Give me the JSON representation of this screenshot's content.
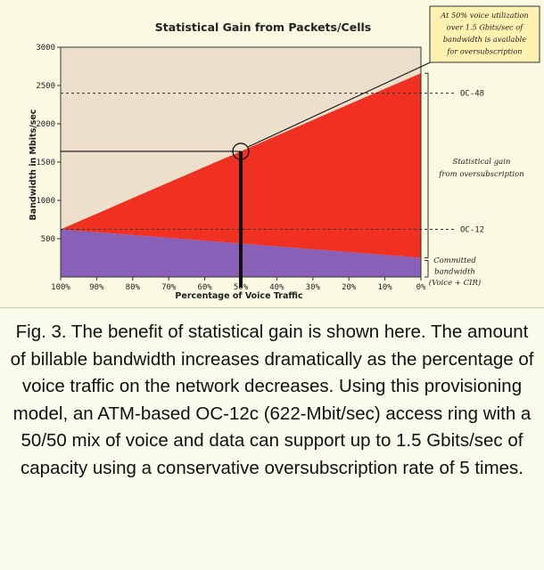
{
  "chart_data": {
    "type": "area",
    "title": "Statistical Gain from Packets/Cells",
    "xlabel": "Percentage of Voice Traffic",
    "ylabel": "Bandwidth in Mbits/sec",
    "x_ticks": [
      "100%",
      "90%",
      "80%",
      "70%",
      "60%",
      "50%",
      "40%",
      "30%",
      "20%",
      "10%",
      "0%"
    ],
    "x_values": [
      100,
      90,
      80,
      70,
      60,
      50,
      40,
      30,
      20,
      10,
      0
    ],
    "ylim": [
      0,
      3000
    ],
    "y_ticks": [
      500,
      1000,
      1500,
      2000,
      2500,
      3000
    ],
    "series": [
      {
        "name": "Committed bandwidth (Voice + CIR)",
        "values": [
          622,
          585,
          548,
          511,
          474,
          436,
          399,
          362,
          325,
          288,
          250
        ],
        "color": "#8860b8"
      },
      {
        "name": "Statistical gain from oversubscription",
        "values": [
          622,
          826,
          1030,
          1234,
          1438,
          1640,
          1846,
          2050,
          2254,
          2458,
          2660
        ],
        "color": "#f03020"
      }
    ],
    "background_color": "#ece0cc",
    "reference_lines": [
      {
        "label": "OC-48",
        "value": 2400
      },
      {
        "label": "OC-12",
        "value": 622
      }
    ],
    "highlight": {
      "x": 50,
      "y": 1640
    },
    "side_notes": {
      "gain": [
        "Statistical gain",
        "from oversubscription"
      ],
      "committed": [
        "Committed",
        "bandwidth",
        "(Voice + CIR)"
      ]
    },
    "callout": [
      "At 50% voice utilization",
      "over 1.5 Gbits/sec of",
      "bandwidth is available",
      "for oversubscription"
    ],
    "callout_color": "#fff2b0"
  },
  "caption": {
    "text": "Fig. 3. The benefit of statistical gain is shown here. The amount of billable bandwidth increases dramatically as the percentage of voice traffic on the network decreases. Using this provisioning model, an ATM-based OC-12c (622-Mbit/sec) access ring with a 50/50 mix of voice and data can support up to 1.5 Gbits/sec of capacity using a conservative oversubscription rate of 5 times."
  }
}
